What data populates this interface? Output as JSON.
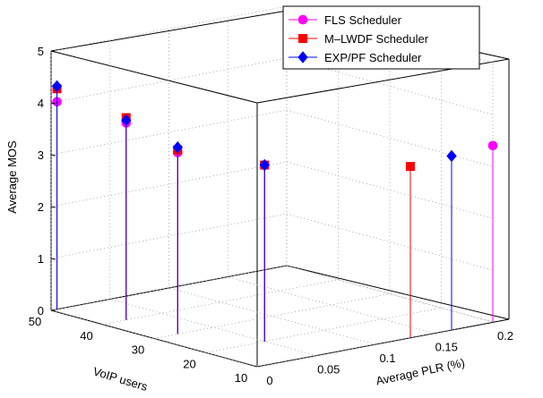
{
  "chart_data": {
    "type": "scatter",
    "subtype": "3d-stem",
    "zlabel": "Average MOS",
    "xlabel": "VoIP users",
    "ylabel": "Average PLR (%)",
    "zticks": [
      "0",
      "1",
      "2",
      "3",
      "4",
      "5"
    ],
    "xticks": [
      "10",
      "20",
      "30",
      "40",
      "50"
    ],
    "yticks": [
      "0",
      "0.05",
      "0.1",
      "0.15",
      "0.2"
    ],
    "xlim": [
      10,
      50
    ],
    "ylim": [
      0,
      0.2
    ],
    "zlim": [
      0,
      5
    ],
    "grid": true,
    "legend_position": "top-right",
    "series": [
      {
        "name": "FLS Scheduler",
        "color": "#ff00ff",
        "marker": "circle",
        "points": [
          {
            "x": 50,
            "y": 0.005,
            "z": 4.0
          },
          {
            "x": 40,
            "y": 0.02,
            "z": 3.8
          },
          {
            "x": 30,
            "y": 0.02,
            "z": 3.5
          },
          {
            "x": 20,
            "y": 0.05,
            "z": 3.4
          },
          {
            "x": 10,
            "y": 0.2,
            "z": 3.4
          }
        ]
      },
      {
        "name": "M–LWDF Scheduler",
        "color": "#ff0000",
        "marker": "square",
        "points": [
          {
            "x": 50,
            "y": 0.005,
            "z": 4.25
          },
          {
            "x": 40,
            "y": 0.02,
            "z": 3.9
          },
          {
            "x": 30,
            "y": 0.02,
            "z": 3.55
          },
          {
            "x": 20,
            "y": 0.05,
            "z": 3.4
          },
          {
            "x": 10,
            "y": 0.13,
            "z": 3.3
          }
        ]
      },
      {
        "name": "EXP/PF Scheduler",
        "color": "#0000ff",
        "marker": "diamond",
        "points": [
          {
            "x": 50,
            "y": 0.005,
            "z": 4.3
          },
          {
            "x": 40,
            "y": 0.02,
            "z": 3.85
          },
          {
            "x": 30,
            "y": 0.02,
            "z": 3.6
          },
          {
            "x": 20,
            "y": 0.05,
            "z": 3.4
          },
          {
            "x": 10,
            "y": 0.165,
            "z": 3.35
          }
        ]
      }
    ]
  }
}
